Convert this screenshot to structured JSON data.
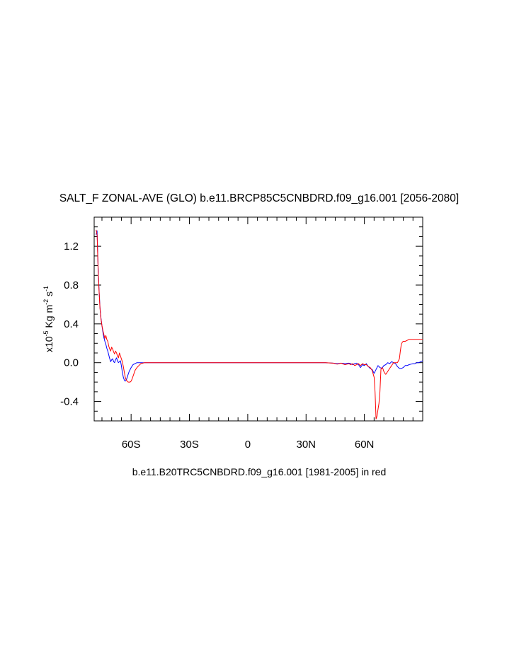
{
  "chart_data": {
    "type": "line",
    "title": "SALT_F ZONAL-AVE (GLO) b.e11.BRCP85C5CNBDRD.f09_g16.001 [2056-2080]",
    "xlabel": "b.e11.B20TRC5CNBDRD.f09_g16.001 [1981-2005] in red",
    "ylabel": {
      "prefix": "x10",
      "exp1": "-5",
      "mid": " Kg m",
      "exp2": "-2",
      "mid2": " s",
      "exp3": "-1"
    },
    "xlim": [
      -79,
      90
    ],
    "ylim": [
      -0.6,
      1.5
    ],
    "x_ticks": [
      {
        "value": -60,
        "label": "60S"
      },
      {
        "value": -30,
        "label": "30S"
      },
      {
        "value": 0,
        "label": "0"
      },
      {
        "value": 30,
        "label": "30N"
      },
      {
        "value": 60,
        "label": "60N"
      }
    ],
    "y_ticks": [
      {
        "value": -0.4,
        "label": "-0.4"
      },
      {
        "value": 0.0,
        "label": "0.0"
      },
      {
        "value": 0.4,
        "label": "0.4"
      },
      {
        "value": 0.8,
        "label": "0.8"
      },
      {
        "value": 1.2,
        "label": "1.2"
      }
    ],
    "colors": {
      "series_blue": "#0000ff",
      "series_red": "#ff0000",
      "axis": "#000000"
    },
    "series": [
      {
        "color": "#0000ff",
        "x": [
          -78,
          -77.5,
          -77,
          -76.5,
          -76,
          -75.5,
          -75,
          -74.5,
          -74,
          -73.5,
          -73,
          -72.5,
          -72,
          -71.5,
          -71,
          -70.5,
          -70,
          -69.5,
          -69,
          -68.5,
          -68,
          -67.5,
          -67,
          -66.5,
          -66,
          -65.5,
          -65,
          -64.5,
          -64,
          -63.5,
          -63,
          -62.5,
          -62,
          -61.5,
          -61,
          -60,
          -59,
          -58,
          -57,
          -56,
          -55,
          -54,
          -53,
          -50,
          -40,
          -20,
          0,
          20,
          40,
          44,
          46,
          48,
          50,
          52,
          53,
          54,
          55,
          56,
          57,
          58,
          59,
          60,
          61,
          62,
          63,
          64,
          65,
          66,
          67,
          68,
          69,
          70,
          71,
          72,
          73,
          74,
          75,
          76,
          77,
          78,
          79,
          80,
          81,
          82,
          83,
          84,
          85,
          86,
          87,
          88,
          89,
          90
        ],
        "y": [
          1.32,
          1.36,
          1.0,
          0.75,
          0.57,
          0.46,
          0.38,
          0.31,
          0.26,
          0.22,
          0.19,
          0.15,
          0.12,
          0.08,
          0.04,
          0.01,
          0.03,
          0.04,
          0.01,
          0.0,
          0.03,
          0.05,
          0.02,
          0.0,
          0.01,
          0.02,
          -0.03,
          -0.1,
          -0.15,
          -0.18,
          -0.19,
          -0.18,
          -0.15,
          -0.12,
          -0.09,
          -0.05,
          -0.02,
          -0.01,
          0.0,
          0.0,
          0.0,
          0.0,
          0.0,
          0.0,
          0.0,
          0.0,
          0.0,
          0.0,
          0.0,
          -0.005,
          -0.01,
          -0.005,
          -0.01,
          -0.005,
          -0.01,
          -0.02,
          -0.01,
          -0.005,
          -0.02,
          -0.05,
          -0.02,
          -0.03,
          -0.01,
          -0.04,
          -0.06,
          -0.07,
          -0.11,
          -0.07,
          -0.03,
          -0.05,
          -0.06,
          -0.03,
          -0.02,
          0.0,
          -0.01,
          0.01,
          0.0,
          -0.01,
          -0.04,
          -0.06,
          -0.06,
          -0.05,
          -0.03,
          -0.03,
          -0.02,
          -0.015,
          -0.01,
          -0.01,
          0.0,
          0.0,
          0.01,
          0.02
        ]
      },
      {
        "color": "#ff0000",
        "x": [
          -78,
          -77.5,
          -77,
          -76.5,
          -76,
          -75.5,
          -75,
          -74.5,
          -74,
          -73.5,
          -73,
          -72.5,
          -72,
          -71.5,
          -71,
          -70.5,
          -70,
          -69.5,
          -69,
          -68.5,
          -68,
          -67.5,
          -67,
          -66.5,
          -66,
          -65.5,
          -65,
          -64.5,
          -64,
          -63.5,
          -63,
          -62.5,
          -62,
          -61.5,
          -61,
          -60.5,
          -60,
          -59.5,
          -59,
          -58.5,
          -58,
          -57,
          -56,
          -55,
          -54,
          -53,
          -52,
          -50,
          -40,
          -20,
          0,
          20,
          40,
          44,
          46,
          48,
          50,
          52,
          53,
          54,
          55,
          56,
          57,
          58,
          59,
          60,
          61,
          62,
          63,
          64,
          65,
          65.5,
          66,
          66.5,
          67,
          67.5,
          68,
          68.5,
          69,
          69.5,
          70,
          70.5,
          71,
          72,
          73,
          74,
          75,
          76,
          77,
          77.5,
          78,
          78.5,
          79,
          79.5,
          80,
          81,
          82,
          83,
          84,
          85,
          86,
          88,
          90
        ],
        "y": [
          1.37,
          1.32,
          0.98,
          0.74,
          0.56,
          0.45,
          0.38,
          0.33,
          0.29,
          0.25,
          0.28,
          0.24,
          0.22,
          0.17,
          0.14,
          0.12,
          0.16,
          0.14,
          0.11,
          0.09,
          0.12,
          0.1,
          0.07,
          0.05,
          0.1,
          0.07,
          0.04,
          0.01,
          -0.04,
          -0.1,
          -0.15,
          -0.18,
          -0.19,
          -0.2,
          -0.2,
          -0.2,
          -0.19,
          -0.17,
          -0.14,
          -0.11,
          -0.08,
          -0.05,
          -0.03,
          -0.01,
          -0.005,
          0.0,
          0.0,
          0.0,
          0.0,
          0.0,
          0.0,
          0.0,
          0.0,
          -0.005,
          -0.015,
          -0.005,
          -0.02,
          -0.01,
          -0.02,
          -0.01,
          -0.03,
          -0.02,
          -0.01,
          -0.03,
          -0.01,
          -0.02,
          -0.02,
          -0.04,
          -0.05,
          -0.08,
          -0.15,
          -0.3,
          -0.58,
          -0.55,
          -0.48,
          -0.42,
          -0.3,
          -0.07,
          -0.05,
          -0.06,
          -0.09,
          -0.11,
          -0.12,
          -0.09,
          -0.06,
          -0.03,
          0.0,
          0.0,
          0.0,
          0.02,
          0.04,
          0.12,
          0.19,
          0.21,
          0.22,
          0.22,
          0.23,
          0.24,
          0.24,
          0.24,
          0.24,
          0.24,
          0.24
        ]
      }
    ]
  }
}
